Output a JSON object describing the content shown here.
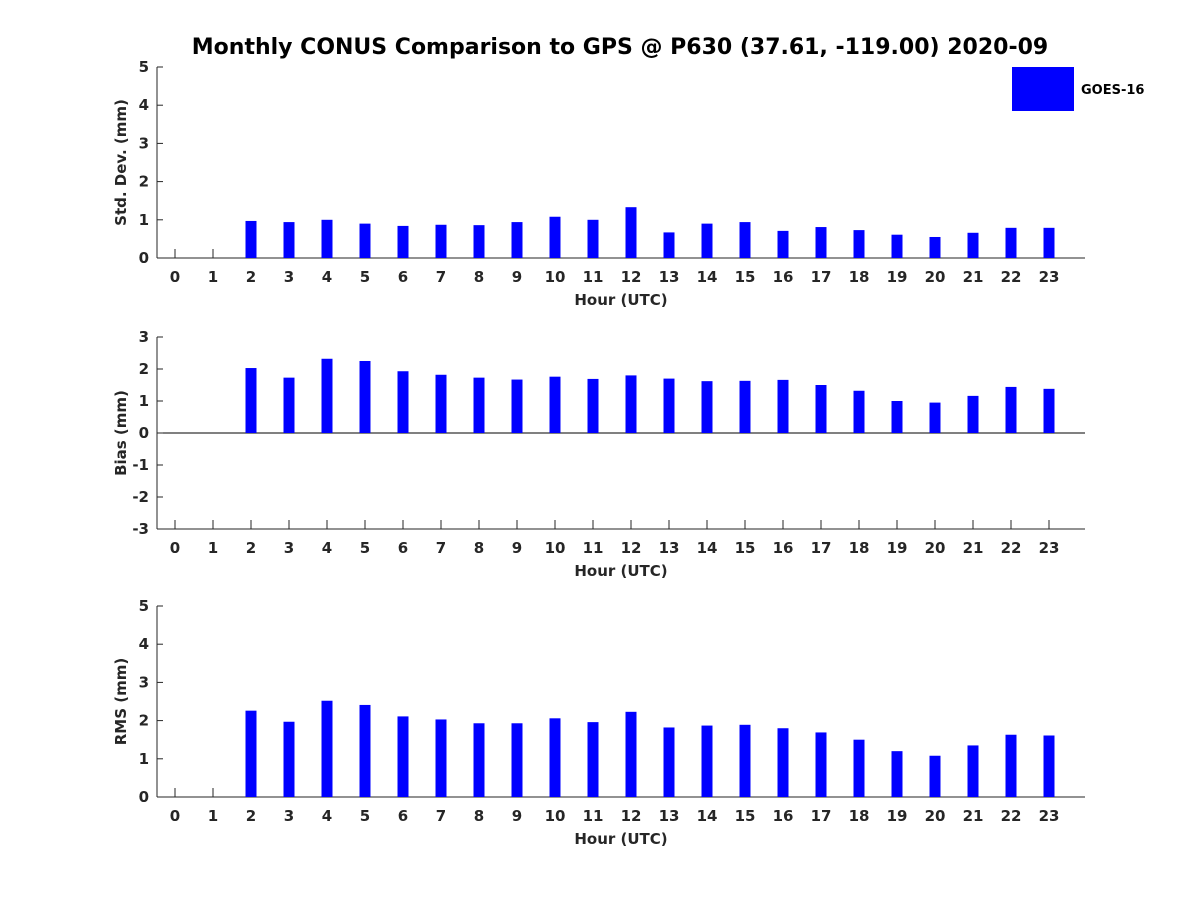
{
  "title": "Monthly CONUS Comparison to GPS @ P630 (37.61, -119.00) 2020-09",
  "legend": {
    "label": "GOES-16",
    "placement": "top-right"
  },
  "colors": {
    "bar": "#0000ff",
    "axis": "#262626",
    "background": "#ffffff"
  },
  "chart_data": [
    {
      "type": "bar",
      "xlabel": "Hour (UTC)",
      "ylabel": "Std. Dev. (mm)",
      "ylim": [
        0,
        5
      ],
      "yticks": [
        0,
        1,
        2,
        3,
        4,
        5
      ],
      "grid": false,
      "categories": [
        "0",
        "1",
        "2",
        "3",
        "4",
        "5",
        "6",
        "7",
        "8",
        "9",
        "10",
        "11",
        "12",
        "13",
        "14",
        "15",
        "16",
        "17",
        "18",
        "19",
        "20",
        "21",
        "22",
        "23"
      ],
      "series": [
        {
          "name": "GOES-16",
          "values": [
            null,
            null,
            0.97,
            0.94,
            1.0,
            0.9,
            0.84,
            0.87,
            0.86,
            0.94,
            1.08,
            1.0,
            1.33,
            0.67,
            0.9,
            0.94,
            0.71,
            0.81,
            0.73,
            0.61,
            0.55,
            0.66,
            0.79,
            0.79
          ]
        }
      ]
    },
    {
      "type": "bar",
      "xlabel": "Hour (UTC)",
      "ylabel": "Bias (mm)",
      "ylim": [
        -3,
        3
      ],
      "yticks": [
        -3,
        -2,
        -1,
        0,
        1,
        2,
        3
      ],
      "grid": false,
      "categories": [
        "0",
        "1",
        "2",
        "3",
        "4",
        "5",
        "6",
        "7",
        "8",
        "9",
        "10",
        "11",
        "12",
        "13",
        "14",
        "15",
        "16",
        "17",
        "18",
        "19",
        "20",
        "21",
        "22",
        "23"
      ],
      "series": [
        {
          "name": "GOES-16",
          "values": [
            null,
            null,
            2.03,
            1.73,
            2.32,
            2.25,
            1.93,
            1.82,
            1.73,
            1.67,
            1.76,
            1.69,
            1.8,
            1.7,
            1.62,
            1.63,
            1.66,
            1.5,
            1.32,
            1.0,
            0.95,
            1.16,
            1.44,
            1.38
          ]
        }
      ]
    },
    {
      "type": "bar",
      "xlabel": "Hour (UTC)",
      "ylabel": "RMS (mm)",
      "ylim": [
        0,
        5
      ],
      "yticks": [
        0,
        1,
        2,
        3,
        4,
        5
      ],
      "grid": false,
      "categories": [
        "0",
        "1",
        "2",
        "3",
        "4",
        "5",
        "6",
        "7",
        "8",
        "9",
        "10",
        "11",
        "12",
        "13",
        "14",
        "15",
        "16",
        "17",
        "18",
        "19",
        "20",
        "21",
        "22",
        "23"
      ],
      "series": [
        {
          "name": "GOES-16",
          "values": [
            null,
            null,
            2.26,
            1.97,
            2.52,
            2.41,
            2.11,
            2.03,
            1.93,
            1.93,
            2.06,
            1.96,
            2.23,
            1.82,
            1.87,
            1.89,
            1.8,
            1.69,
            1.5,
            1.2,
            1.08,
            1.35,
            1.63,
            1.61
          ]
        }
      ]
    }
  ]
}
